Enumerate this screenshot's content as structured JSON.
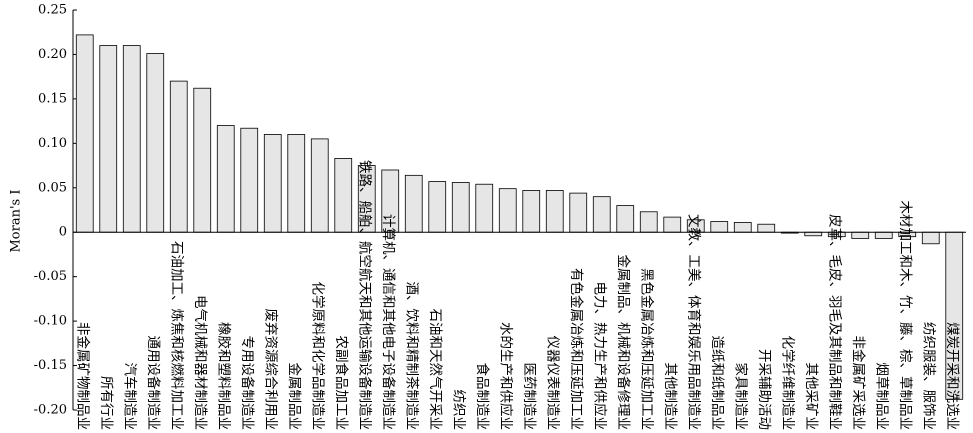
{
  "chart_data": {
    "type": "bar",
    "y_label": "Moran's I",
    "categories": [
      "非金属矿物制品业",
      "所有行业",
      "汽车制造业",
      "通用设备制造业",
      "石油加工、炼焦和核燃料加工业",
      "电气机械和器材制造业",
      "橡胶和塑料制品业",
      "专用设备制造业",
      "废弃资源综合利用业",
      "金属制品业",
      "化学原料和化学品制造业",
      "农副食品加工业",
      "铁路、船舶、航空航天和其他运输设备制造业",
      "计算机、通信和其他电子设备制造业",
      "酒、饮料和精制茶制造业",
      "石油和天然气开采业",
      "纺织业",
      "食品制造业",
      "水的生产和供应业",
      "医药制造业",
      "仪器仪表制造业",
      "有色金属冶炼和压延加工业",
      "电力、热力生产和供应业",
      "金属制品、机械和设备修理业",
      "黑色金属冶炼和压延加工业",
      "其他制造业",
      "文教、工美、体育和娱乐用品制造业",
      "造纸和纸制品业",
      "家具制造业",
      "开采辅助活动",
      "化学纤维制造业",
      "其他采矿业",
      "皮革、毛皮、羽毛及其制品和制鞋业",
      "非金属矿采选业",
      "烟草制品业",
      "木材加工和木、竹、藤、棕、草制品业",
      "纺织服装、服饰业",
      "煤炭开采和洗选业"
    ],
    "values": [
      0.222,
      0.21,
      0.21,
      0.201,
      0.17,
      0.162,
      0.12,
      0.117,
      0.11,
      0.11,
      0.105,
      0.083,
      0.075,
      0.07,
      0.064,
      0.057,
      0.056,
      0.054,
      0.049,
      0.047,
      0.047,
      0.044,
      0.04,
      0.03,
      0.023,
      0.017,
      0.014,
      0.012,
      0.011,
      0.009,
      -0.001,
      -0.004,
      -0.005,
      -0.007,
      -0.007,
      -0.005,
      -0.013,
      -0.188
    ],
    "color": "#e6e6e6",
    "ylim": [
      -0.2,
      0.25
    ],
    "yticks": [
      0.25,
      {
        "value": 0.2,
        "label": "0.20"
      },
      0.15,
      {
        "value": 0.1,
        "label": "0.10"
      },
      0.05,
      0,
      -0.05,
      {
        "value": -0.1,
        "label": "-0.10"
      },
      -0.15,
      {
        "value": -0.2,
        "label": "-0.20"
      }
    ]
  }
}
